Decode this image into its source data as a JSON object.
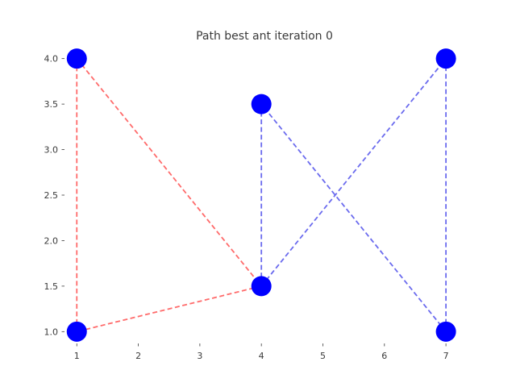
{
  "chart_data": {
    "type": "scatter",
    "title": "Path best ant iteration 0",
    "xlabel": "",
    "ylabel": "",
    "xlim": [
      0.8,
      7.3
    ],
    "ylim": [
      0.87,
      4.13
    ],
    "x_ticks": [
      "1",
      "2",
      "3",
      "4",
      "5",
      "6",
      "7"
    ],
    "y_ticks": [
      "1.0",
      "1.5",
      "2.0",
      "2.5",
      "3.0",
      "3.5",
      "4.0"
    ],
    "grid": false,
    "nodes": [
      {
        "x": 1,
        "y": 4.0
      },
      {
        "x": 4,
        "y": 3.5
      },
      {
        "x": 7,
        "y": 4.0
      },
      {
        "x": 4,
        "y": 1.5
      },
      {
        "x": 1,
        "y": 1.0
      },
      {
        "x": 7,
        "y": 1.0
      }
    ],
    "node_color": "#0000ff",
    "series": [
      {
        "color": "#ff6b6b",
        "style": "dashed",
        "segments": [
          [
            [
              1,
              4.0
            ],
            [
              4,
              1.5
            ]
          ],
          [
            [
              4,
              1.5
            ],
            [
              1,
              1.0
            ]
          ],
          [
            [
              1,
              1.0
            ],
            [
              1,
              4.0
            ]
          ]
        ]
      },
      {
        "color": "#6b6bee",
        "style": "dashed",
        "segments": [
          [
            [
              4,
              3.5
            ],
            [
              4,
              1.5
            ]
          ],
          [
            [
              4,
              1.5
            ],
            [
              7,
              4.0
            ]
          ],
          [
            [
              7,
              4.0
            ],
            [
              7,
              1.0
            ]
          ],
          [
            [
              7,
              1.0
            ],
            [
              4,
              3.5
            ]
          ]
        ]
      }
    ]
  }
}
